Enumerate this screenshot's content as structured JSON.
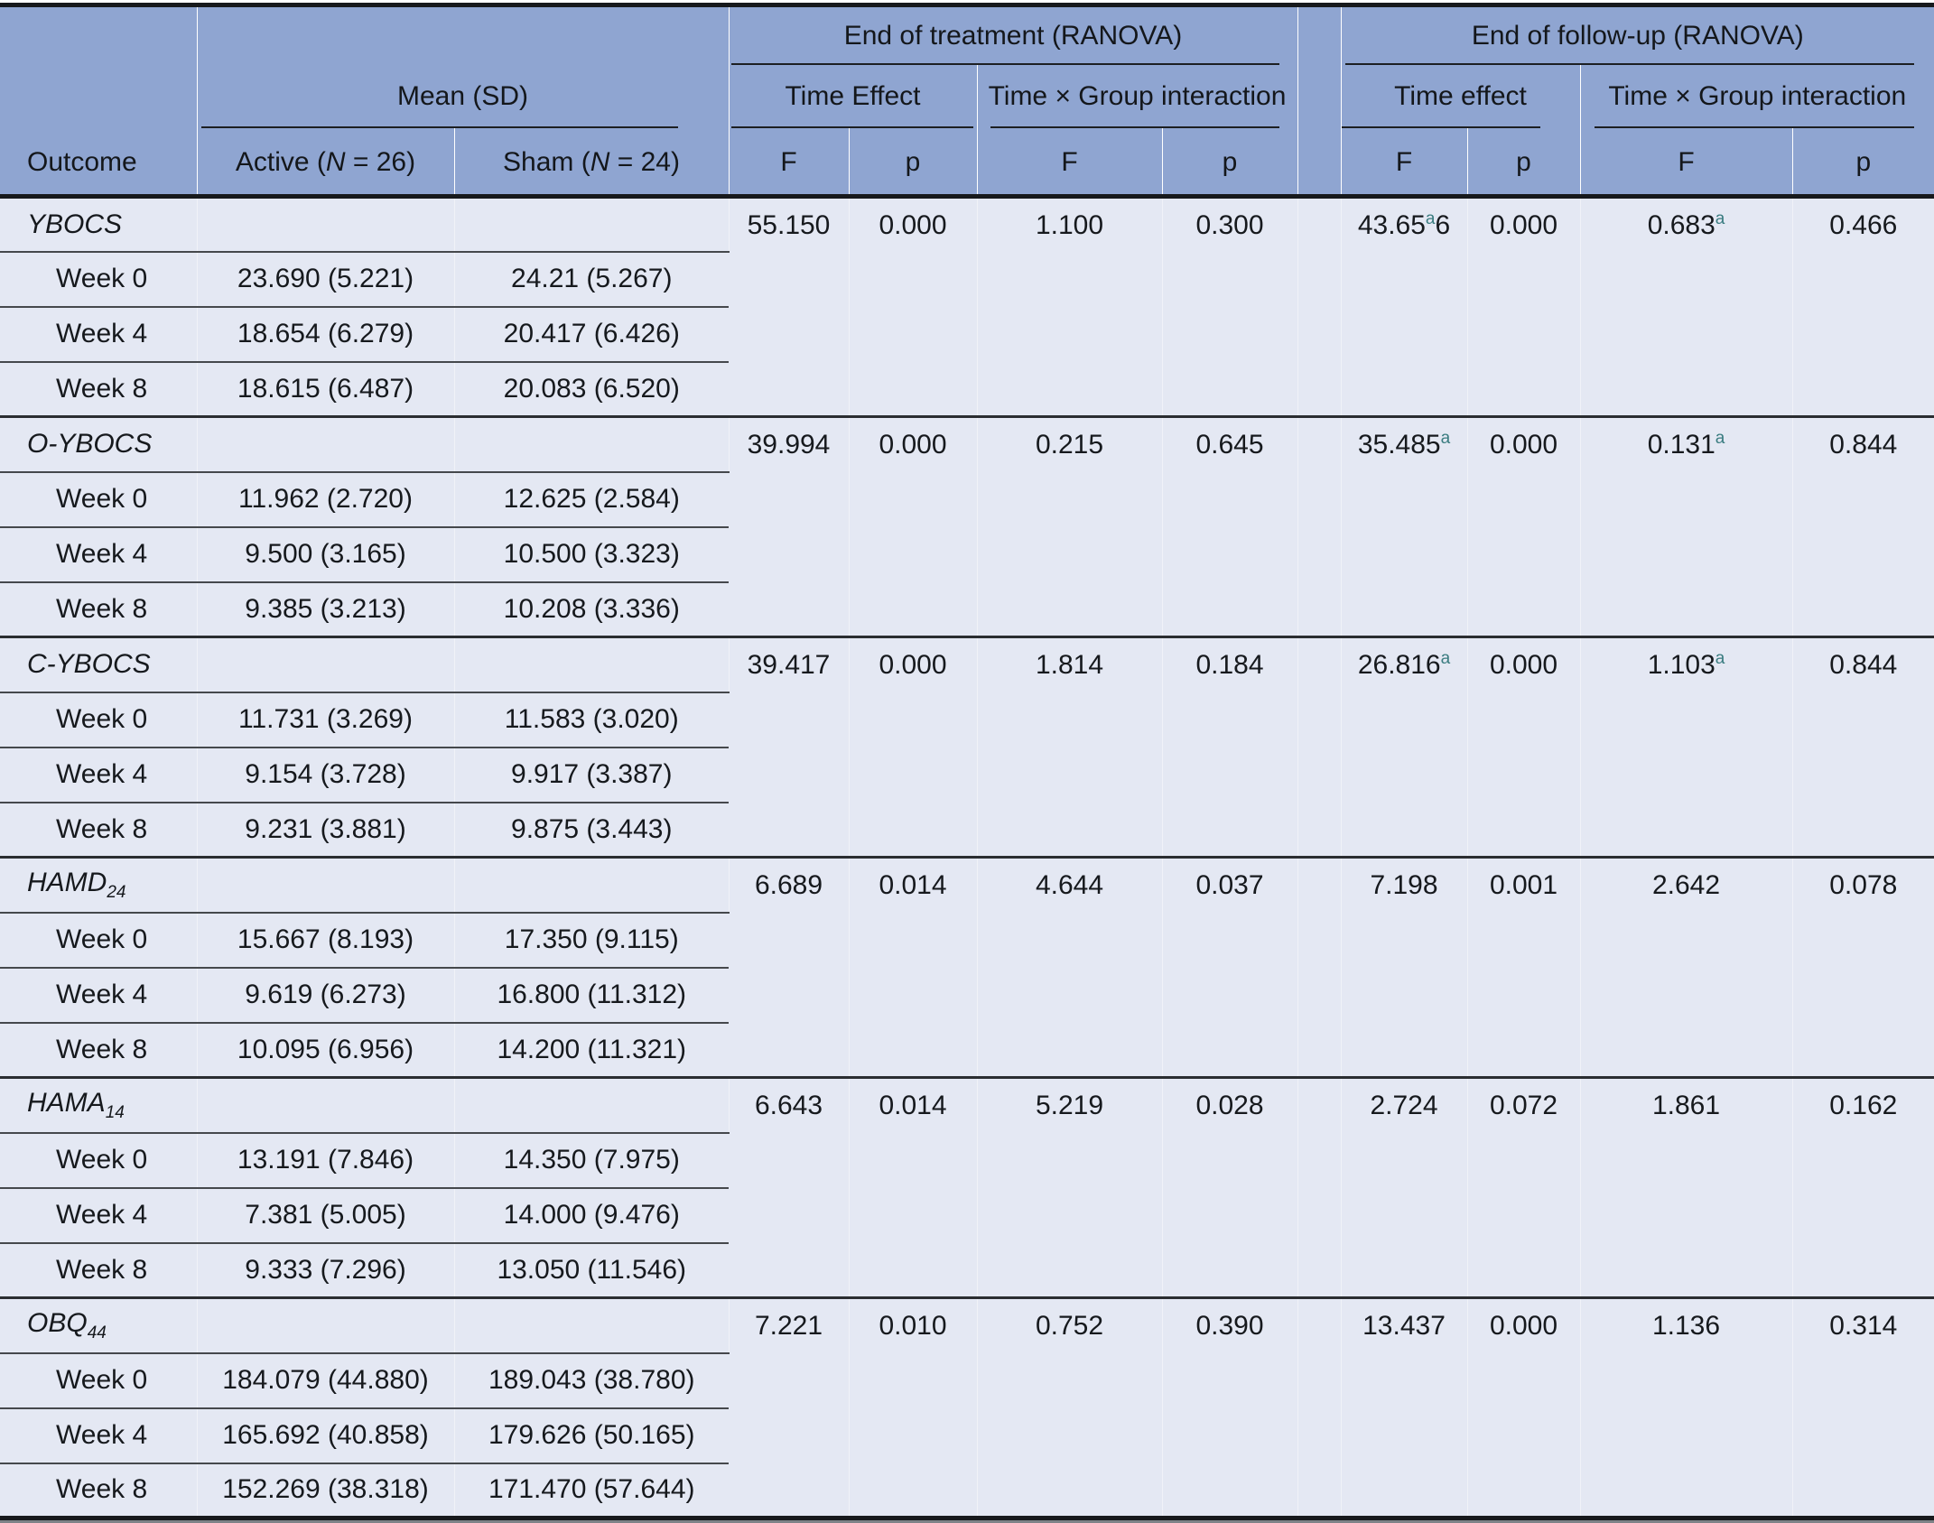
{
  "colors": {
    "header_bg": "#8fa5d1",
    "body_bg": "#e4e8f3",
    "footnote_marker": "#3a7c80",
    "rule_dark": "#17191c",
    "rule_mid": "#45484c"
  },
  "header": {
    "outcome_label": "Outcome",
    "mean_sd": "Mean (SD)",
    "active": {
      "pre": "Active (",
      "n": "N",
      "post": " = 26)"
    },
    "sham": {
      "pre": "Sham (",
      "n": "N",
      "post": " = 24)"
    },
    "eot_title": "End of treatment (RANOVA)",
    "fu_title": "End of follow-up (RANOVA)",
    "eot_time": "Time Effect",
    "eot_interaction": "Time × Group interaction",
    "fu_time": "Time effect",
    "fu_interaction": "Time × Group interaction",
    "f": "F",
    "p": "p"
  },
  "sections": [
    {
      "outcome": {
        "name": "YBOCS",
        "sub": ""
      },
      "stats": [
        {
          "name": "eot-time-f",
          "text": "55.150"
        },
        {
          "name": "eot-time-p",
          "text": "0.000"
        },
        {
          "name": "eot-interaction-f",
          "text": "1.100"
        },
        {
          "name": "eot-interaction-p",
          "text": "0.300"
        },
        {
          "name": "fu-time-f",
          "text": "43.65",
          "sup": "a",
          "tail": "6"
        },
        {
          "name": "fu-time-p",
          "text": "0.000"
        },
        {
          "name": "fu-interaction-f",
          "text": "0.683",
          "sup": "a"
        },
        {
          "name": "fu-interaction-p",
          "text": "0.466"
        }
      ],
      "rows": [
        {
          "label": "Week 0",
          "active": "23.690 (5.221)",
          "sham": "24.21 (5.267)"
        },
        {
          "label": "Week 4",
          "active": "18.654 (6.279)",
          "sham": "20.417 (6.426)"
        },
        {
          "label": "Week 8",
          "active": "18.615 (6.487)",
          "sham": "20.083 (6.520)"
        }
      ]
    },
    {
      "outcome": {
        "name": "O-YBOCS",
        "sub": ""
      },
      "stats": [
        {
          "name": "eot-time-f",
          "text": "39.994"
        },
        {
          "name": "eot-time-p",
          "text": "0.000"
        },
        {
          "name": "eot-interaction-f",
          "text": "0.215"
        },
        {
          "name": "eot-interaction-p",
          "text": "0.645"
        },
        {
          "name": "fu-time-f",
          "text": "35.485",
          "sup": "a"
        },
        {
          "name": "fu-time-p",
          "text": "0.000"
        },
        {
          "name": "fu-interaction-f",
          "text": "0.131",
          "sup": "a"
        },
        {
          "name": "fu-interaction-p",
          "text": "0.844"
        }
      ],
      "rows": [
        {
          "label": "Week 0",
          "active": "11.962 (2.720)",
          "sham": "12.625 (2.584)"
        },
        {
          "label": "Week 4",
          "active": "9.500 (3.165)",
          "sham": "10.500 (3.323)"
        },
        {
          "label": "Week 8",
          "active": "9.385 (3.213)",
          "sham": "10.208 (3.336)"
        }
      ]
    },
    {
      "outcome": {
        "name": "C-YBOCS",
        "sub": ""
      },
      "stats": [
        {
          "name": "eot-time-f",
          "text": "39.417"
        },
        {
          "name": "eot-time-p",
          "text": "0.000"
        },
        {
          "name": "eot-interaction-f",
          "text": "1.814"
        },
        {
          "name": "eot-interaction-p",
          "text": "0.184"
        },
        {
          "name": "fu-time-f",
          "text": "26.816",
          "sup": "a"
        },
        {
          "name": "fu-time-p",
          "text": "0.000"
        },
        {
          "name": "fu-interaction-f",
          "text": "1.103",
          "sup": "a"
        },
        {
          "name": "fu-interaction-p",
          "text": "0.844"
        }
      ],
      "rows": [
        {
          "label": "Week 0",
          "active": "11.731 (3.269)",
          "sham": "11.583 (3.020)"
        },
        {
          "label": "Week 4",
          "active": "9.154 (3.728)",
          "sham": "9.917 (3.387)"
        },
        {
          "label": "Week 8",
          "active": "9.231 (3.881)",
          "sham": "9.875 (3.443)"
        }
      ]
    },
    {
      "outcome": {
        "name": "HAMD",
        "sub": "24"
      },
      "stats": [
        {
          "name": "eot-time-f",
          "text": "6.689"
        },
        {
          "name": "eot-time-p",
          "text": "0.014"
        },
        {
          "name": "eot-interaction-f",
          "text": "4.644"
        },
        {
          "name": "eot-interaction-p",
          "text": "0.037"
        },
        {
          "name": "fu-time-f",
          "text": "7.198"
        },
        {
          "name": "fu-time-p",
          "text": "0.001"
        },
        {
          "name": "fu-interaction-f",
          "text": "2.642"
        },
        {
          "name": "fu-interaction-p",
          "text": "0.078"
        }
      ],
      "rows": [
        {
          "label": "Week 0",
          "active": "15.667 (8.193)",
          "sham": "17.350 (9.115)"
        },
        {
          "label": "Week 4",
          "active": "9.619 (6.273)",
          "sham": "16.800 (11.312)"
        },
        {
          "label": "Week 8",
          "active": "10.095 (6.956)",
          "sham": "14.200 (11.321)"
        }
      ]
    },
    {
      "outcome": {
        "name": "HAMA",
        "sub": "14"
      },
      "stats": [
        {
          "name": "eot-time-f",
          "text": "6.643"
        },
        {
          "name": "eot-time-p",
          "text": "0.014"
        },
        {
          "name": "eot-interaction-f",
          "text": "5.219"
        },
        {
          "name": "eot-interaction-p",
          "text": "0.028"
        },
        {
          "name": "fu-time-f",
          "text": "2.724"
        },
        {
          "name": "fu-time-p",
          "text": "0.072"
        },
        {
          "name": "fu-interaction-f",
          "text": "1.861"
        },
        {
          "name": "fu-interaction-p",
          "text": "0.162"
        }
      ],
      "rows": [
        {
          "label": "Week 0",
          "active": "13.191 (7.846)",
          "sham": "14.350 (7.975)"
        },
        {
          "label": "Week 4",
          "active": "7.381 (5.005)",
          "sham": "14.000 (9.476)"
        },
        {
          "label": "Week 8",
          "active": "9.333 (7.296)",
          "sham": "13.050 (11.546)"
        }
      ]
    },
    {
      "outcome": {
        "name": "OBQ",
        "sub": "44"
      },
      "stats": [
        {
          "name": "eot-time-f",
          "text": "7.221"
        },
        {
          "name": "eot-time-p",
          "text": "0.010"
        },
        {
          "name": "eot-interaction-f",
          "text": "0.752"
        },
        {
          "name": "eot-interaction-p",
          "text": "0.390"
        },
        {
          "name": "fu-time-f",
          "text": "13.437"
        },
        {
          "name": "fu-time-p",
          "text": "0.000"
        },
        {
          "name": "fu-interaction-f",
          "text": "1.136"
        },
        {
          "name": "fu-interaction-p",
          "text": "0.314"
        }
      ],
      "rows": [
        {
          "label": "Week 0",
          "active": "184.079 (44.880)",
          "sham": "189.043 (38.780)"
        },
        {
          "label": "Week 4",
          "active": "165.692 (40.858)",
          "sham": "179.626 (50.165)"
        },
        {
          "label": "Week 8",
          "active": "152.269 (38.318)",
          "sham": "171.470 (57.644)"
        }
      ]
    }
  ]
}
